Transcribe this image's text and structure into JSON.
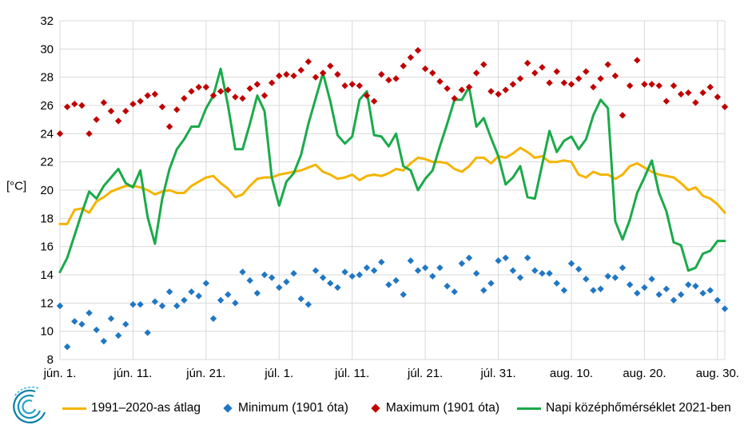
{
  "chart_data": {
    "type": "line",
    "ylabel": "[°C]",
    "ylim": [
      8,
      32
    ],
    "yticks": [
      8,
      10,
      12,
      14,
      16,
      18,
      20,
      22,
      24,
      26,
      28,
      30,
      32
    ],
    "xlim": [
      0,
      91
    ],
    "x_tick_labels": [
      {
        "day": 0,
        "label": "jún. 1."
      },
      {
        "day": 10,
        "label": "jún. 11."
      },
      {
        "day": 20,
        "label": "jún. 21."
      },
      {
        "day": 30,
        "label": "júl. 1."
      },
      {
        "day": 40,
        "label": "júl. 11."
      },
      {
        "day": 50,
        "label": "júl. 21."
      },
      {
        "day": 60,
        "label": "júl. 31."
      },
      {
        "day": 70,
        "label": "aug. 10."
      },
      {
        "day": 80,
        "label": "aug. 20."
      },
      {
        "day": 90,
        "label": "aug. 30."
      }
    ],
    "grid": true,
    "legend_position": "bottom",
    "series": [
      {
        "name": "1991–2020-as átlag",
        "kind": "line",
        "color": "#f4b400",
        "values": [
          17.6,
          17.6,
          18.6,
          18.7,
          18.4,
          19.2,
          19.5,
          19.9,
          20.1,
          20.3,
          20.3,
          20.2,
          20.0,
          19.7,
          19.9,
          20.0,
          19.8,
          19.8,
          20.3,
          20.6,
          20.9,
          21.0,
          20.5,
          20.1,
          19.5,
          19.7,
          20.3,
          20.8,
          20.9,
          20.9,
          21.1,
          21.2,
          21.3,
          21.4,
          21.6,
          21.8,
          21.3,
          21.1,
          20.8,
          20.9,
          21.1,
          20.7,
          21.0,
          21.1,
          21.0,
          21.2,
          21.5,
          21.4,
          21.9,
          22.3,
          22.2,
          22.0,
          22.0,
          21.9,
          21.5,
          21.3,
          21.7,
          22.3,
          22.3,
          21.9,
          22.4,
          22.3,
          22.6,
          23.0,
          22.7,
          22.3,
          22.4,
          22.0,
          22.0,
          22.1,
          22.0,
          21.1,
          20.9,
          21.3,
          21.1,
          21.1,
          20.8,
          21.1,
          21.7,
          21.9,
          21.6,
          21.3,
          21.1,
          21.0,
          20.9,
          20.5,
          20.0,
          20.2,
          19.6,
          19.4,
          19.0,
          18.4
        ]
      },
      {
        "name": "Minimum (1901 óta)",
        "kind": "scatter",
        "color": "#1f77c4",
        "values": [
          11.8,
          8.9,
          10.7,
          10.5,
          11.3,
          10.1,
          9.3,
          10.9,
          9.7,
          10.5,
          11.9,
          11.9,
          9.9,
          12.1,
          11.8,
          12.8,
          11.8,
          12.2,
          12.8,
          12.5,
          13.4,
          10.9,
          12.2,
          12.6,
          12.0,
          14.2,
          13.6,
          12.7,
          14.0,
          13.8,
          13.1,
          13.5,
          14.1,
          12.3,
          11.9,
          14.3,
          13.8,
          13.4,
          13.1,
          14.2,
          13.9,
          14.0,
          14.5,
          14.3,
          14.9,
          13.3,
          13.6,
          12.6,
          15.0,
          14.3,
          14.5,
          13.9,
          14.5,
          13.2,
          12.8,
          14.8,
          15.2,
          14.1,
          12.9,
          13.4,
          15.0,
          15.2,
          14.3,
          13.8,
          15.2,
          14.3,
          14.1,
          14.1,
          13.4,
          12.9,
          14.8,
          14.4,
          13.7,
          12.9,
          13.0,
          13.9,
          13.8,
          14.5,
          13.3,
          12.7,
          13.1,
          13.7,
          12.6,
          13.0,
          12.2,
          12.6,
          13.3,
          13.2,
          12.7,
          12.9,
          12.2,
          11.6
        ]
      },
      {
        "name": "Maximum (1901 óta)",
        "kind": "scatter",
        "color": "#c00000",
        "values": [
          24.0,
          25.9,
          26.1,
          26.0,
          24.0,
          25.0,
          26.2,
          25.6,
          24.9,
          25.6,
          26.1,
          26.3,
          26.7,
          26.8,
          25.9,
          24.5,
          25.7,
          26.5,
          27.0,
          27.3,
          27.3,
          26.7,
          27.0,
          27.1,
          26.6,
          26.5,
          27.2,
          27.5,
          26.7,
          27.6,
          28.1,
          28.2,
          28.1,
          28.5,
          29.1,
          28.0,
          28.3,
          28.8,
          28.2,
          27.4,
          27.5,
          27.4,
          26.7,
          26.3,
          28.2,
          27.8,
          27.9,
          28.8,
          29.4,
          29.9,
          28.6,
          28.3,
          27.7,
          27.2,
          26.5,
          27.1,
          27.3,
          28.3,
          28.9,
          27.0,
          26.8,
          27.1,
          27.5,
          27.9,
          29.0,
          28.3,
          28.7,
          27.6,
          28.4,
          27.6,
          27.5,
          27.9,
          28.4,
          27.3,
          27.9,
          28.9,
          28.1,
          25.3,
          27.4,
          29.2,
          27.5,
          27.5,
          27.4,
          26.3,
          27.4,
          26.8,
          26.9,
          26.2,
          26.9,
          27.3,
          26.6,
          25.9
        ]
      },
      {
        "name": "Napi középhőmérséklet 2021-ben",
        "kind": "line",
        "color": "#1aaa4a",
        "values": [
          14.2,
          15.2,
          16.8,
          18.4,
          19.9,
          19.4,
          20.3,
          20.9,
          21.5,
          20.5,
          20.2,
          21.4,
          18.1,
          16.2,
          19.4,
          21.5,
          22.9,
          23.6,
          24.5,
          24.5,
          25.8,
          26.7,
          28.6,
          26.0,
          22.9,
          22.9,
          24.7,
          26.7,
          25.6,
          20.9,
          18.9,
          20.6,
          21.2,
          22.5,
          24.7,
          26.5,
          28.3,
          26.3,
          23.9,
          23.3,
          23.8,
          26.4,
          27.0,
          23.9,
          23.8,
          23.1,
          24.0,
          21.7,
          21.4,
          20.0,
          20.8,
          21.4,
          23.1,
          24.7,
          26.4,
          26.4,
          27.3,
          24.5,
          25.1,
          23.7,
          22.4,
          20.4,
          20.9,
          21.7,
          19.5,
          19.4,
          21.8,
          24.2,
          22.7,
          23.5,
          23.8,
          22.9,
          23.6,
          25.3,
          26.4,
          25.8,
          17.8,
          16.5,
          17.9,
          19.8,
          20.9,
          22.1,
          19.8,
          18.5,
          16.3,
          16.1,
          14.3,
          14.5,
          15.5,
          15.7,
          16.4,
          16.4
        ]
      }
    ]
  }
}
